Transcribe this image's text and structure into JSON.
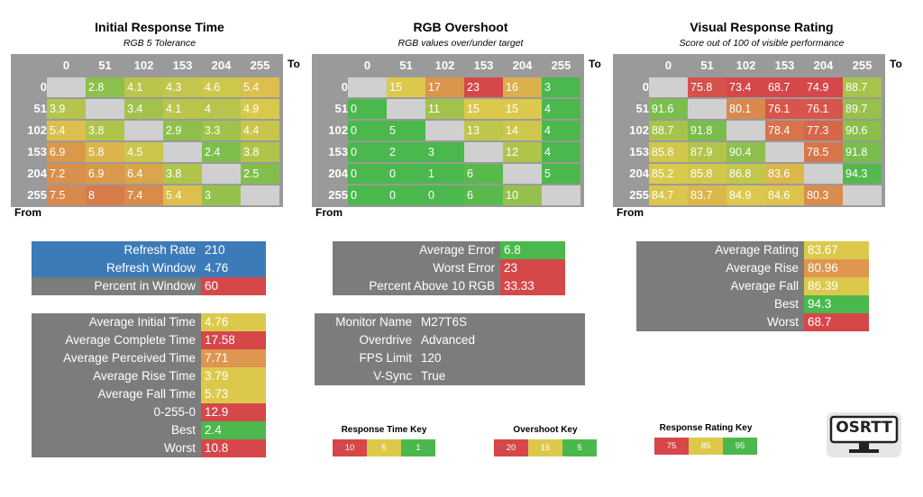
{
  "colors": {
    "header_grey": "#9a9a9a",
    "panel_grey": "#7c7c7c",
    "diagonal": "#d0d0d0",
    "blue": "#3d7ab8",
    "red": "#d6474a",
    "orange": "#de9650",
    "yellow": "#dcc94c",
    "green": "#4ab84c"
  },
  "chart_data": [
    {
      "type": "heatmap",
      "title": "Initial Response Time",
      "subtitle": "RGB 5 Tolerance",
      "xlabel": "To",
      "ylabel": "From",
      "x": [
        "0",
        "51",
        "102",
        "153",
        "204",
        "255"
      ],
      "y": [
        "0",
        "51",
        "102",
        "153",
        "204",
        "255"
      ],
      "values": [
        [
          null,
          "2.8",
          "4.1",
          "4.3",
          "4.6",
          "5.4"
        ],
        [
          "3.9",
          null,
          "3.4",
          "4.1",
          "4",
          "4.9"
        ],
        [
          "5.4",
          "3.8",
          null,
          "2.9",
          "3.3",
          "4.4"
        ],
        [
          "6.9",
          "5.8",
          "4.5",
          null,
          "2.4",
          "3.8"
        ],
        [
          "7.2",
          "6.9",
          "6.4",
          "3.8",
          null,
          "2.5"
        ],
        [
          "7.5",
          "8",
          "7.4",
          "5.4",
          "3",
          null
        ]
      ],
      "scale": [
        {
          "value": 1,
          "color": "#4ab84c"
        },
        {
          "value": 5,
          "color": "#dcc94c"
        },
        {
          "value": 10,
          "color": "#d6474a"
        }
      ]
    },
    {
      "type": "heatmap",
      "title": "RGB Overshoot",
      "subtitle": "RGB values over/under target",
      "xlabel": "To",
      "ylabel": "From",
      "x": [
        "0",
        "51",
        "102",
        "153",
        "204",
        "255"
      ],
      "y": [
        "0",
        "51",
        "102",
        "153",
        "204",
        "255"
      ],
      "values": [
        [
          null,
          "15",
          "17",
          "23",
          "16",
          "3"
        ],
        [
          "0",
          null,
          "11",
          "15",
          "15",
          "4"
        ],
        [
          "0",
          "5",
          null,
          "13",
          "14",
          "4"
        ],
        [
          "0",
          "2",
          "3",
          null,
          "12",
          "4"
        ],
        [
          "0",
          "0",
          "1",
          "6",
          null,
          "5"
        ],
        [
          "0",
          "0",
          "0",
          "6",
          "10",
          null
        ]
      ],
      "scale": [
        {
          "value": 5,
          "color": "#4ab84c"
        },
        {
          "value": 15,
          "color": "#dcc94c"
        },
        {
          "value": 20,
          "color": "#d6474a"
        }
      ]
    },
    {
      "type": "heatmap",
      "title": "Visual Response Rating",
      "subtitle": "Score out of 100 of visible performance",
      "xlabel": "To",
      "ylabel": "From",
      "x": [
        "0",
        "51",
        "102",
        "153",
        "204",
        "255"
      ],
      "y": [
        "0",
        "51",
        "102",
        "153",
        "204",
        "255"
      ],
      "values": [
        [
          null,
          "75.8",
          "73.4",
          "68.7",
          "74.9",
          "88.7"
        ],
        [
          "91.6",
          null,
          "80.1",
          "76.1",
          "76.1",
          "89.7"
        ],
        [
          "88.7",
          "91.8",
          null,
          "78.4",
          "77.3",
          "90.6"
        ],
        [
          "85.8",
          "87.9",
          "90.4",
          null,
          "78.5",
          "91.8"
        ],
        [
          "85.2",
          "85.8",
          "86.8",
          "83.6",
          null,
          "94.3"
        ],
        [
          "84.7",
          "83.7",
          "84.9",
          "84.6",
          "80.3",
          null
        ]
      ],
      "scale": [
        {
          "value": 75,
          "color": "#d6474a"
        },
        {
          "value": 85,
          "color": "#dcc94c"
        },
        {
          "value": 95,
          "color": "#4ab84c"
        }
      ]
    }
  ],
  "info_boxes": {
    "refresh": [
      {
        "label": "Refresh Rate",
        "value": "210",
        "label_color": "#3d7ab8",
        "value_color": "#3d7ab8"
      },
      {
        "label": "Refresh Window",
        "value": "4.76",
        "label_color": "#3d7ab8",
        "value_color": "#3d7ab8"
      },
      {
        "label": "Percent in Window",
        "value": "60",
        "label_color": "#7c7c7c",
        "value_color": "#d6474a"
      }
    ],
    "times": [
      {
        "label": "Average Initial Time",
        "value": "4.76",
        "value_color": "#dcc94c"
      },
      {
        "label": "Average Complete Time",
        "value": "17.58",
        "value_color": "#d6474a"
      },
      {
        "label": "Average Perceived Time",
        "value": "7.71",
        "value_color": "#de9650"
      },
      {
        "label": "Average Rise Time",
        "value": "3.79",
        "value_color": "#dcc94c"
      },
      {
        "label": "Average Fall Time",
        "value": "5.73",
        "value_color": "#dcc94c"
      },
      {
        "label": "0-255-0",
        "value": "12.9",
        "value_color": "#d6474a"
      },
      {
        "label": "Best",
        "value": "2.4",
        "value_color": "#4ab84c"
      },
      {
        "label": "Worst",
        "value": "10.8",
        "value_color": "#d6474a"
      }
    ],
    "overshoot": [
      {
        "label": "Average Error",
        "value": "6.8",
        "value_color": "#4ab84c"
      },
      {
        "label": "Worst Error",
        "value": "23",
        "value_color": "#d6474a"
      },
      {
        "label": "Percent Above 10 RGB",
        "value": "33.33",
        "value_color": "#d6474a"
      }
    ],
    "monitor": [
      {
        "label": "Monitor Name",
        "value": "M27T6S"
      },
      {
        "label": "Overdrive",
        "value": "Advanced"
      },
      {
        "label": "FPS Limit",
        "value": "120"
      },
      {
        "label": "V-Sync",
        "value": "True"
      }
    ],
    "rating": [
      {
        "label": "Average Rating",
        "value": "83.67",
        "value_color": "#dcc94c"
      },
      {
        "label": "Average Rise",
        "value": "80.96",
        "value_color": "#de9650"
      },
      {
        "label": "Average Fall",
        "value": "86.39",
        "value_color": "#dcc94c"
      },
      {
        "label": "Best",
        "value": "94.3",
        "value_color": "#4ab84c"
      },
      {
        "label": "Worst",
        "value": "68.7",
        "value_color": "#d6474a"
      }
    ]
  },
  "keys": [
    {
      "title": "Response Time Key",
      "cells": [
        {
          "value": "10",
          "color": "#d6474a"
        },
        {
          "value": "5",
          "color": "#dcc94c"
        },
        {
          "value": "1",
          "color": "#4ab84c"
        }
      ]
    },
    {
      "title": "Overshoot Key",
      "cells": [
        {
          "value": "20",
          "color": "#d6474a"
        },
        {
          "value": "15",
          "color": "#dcc94c"
        },
        {
          "value": "5",
          "color": "#4ab84c"
        }
      ]
    },
    {
      "title": "Response Rating Key",
      "cells": [
        {
          "value": "75",
          "color": "#d6474a"
        },
        {
          "value": "85",
          "color": "#dcc94c"
        },
        {
          "value": "95",
          "color": "#4ab84c"
        }
      ]
    }
  ],
  "logo": {
    "text": "OSRTT",
    "icon": "monitor-icon"
  }
}
